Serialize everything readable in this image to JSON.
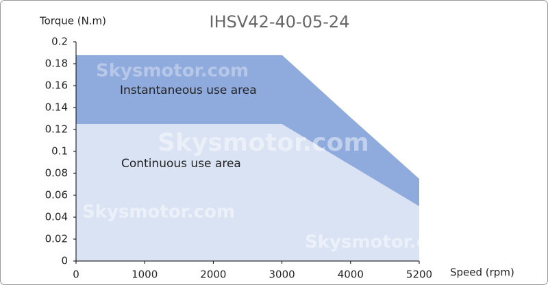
{
  "chart_data": {
    "type": "area",
    "title": "IHSV42-40-05-24",
    "y_label": "Torque (N.m)",
    "x_label": "Speed (rpm)",
    "categories": [
      "0",
      "1000",
      "2000",
      "3000",
      "4000",
      "5200"
    ],
    "series": [
      {
        "name": "Instantaneous use area",
        "color": "#8faadc",
        "values": [
          0.188,
          0.188,
          0.188,
          0.188,
          0.131,
          0.075
        ]
      },
      {
        "name": "Continuous use area",
        "color": "#dae3f3",
        "values": [
          0.125,
          0.125,
          0.125,
          0.125,
          0.0875,
          0.05
        ]
      }
    ],
    "ylim": [
      0,
      0.2
    ],
    "yticks": [
      0,
      0.02,
      0.04,
      0.06,
      0.08,
      0.1,
      0.12,
      0.14,
      0.16,
      0.18,
      0.2
    ],
    "watermark": "Skysmotor.com"
  }
}
